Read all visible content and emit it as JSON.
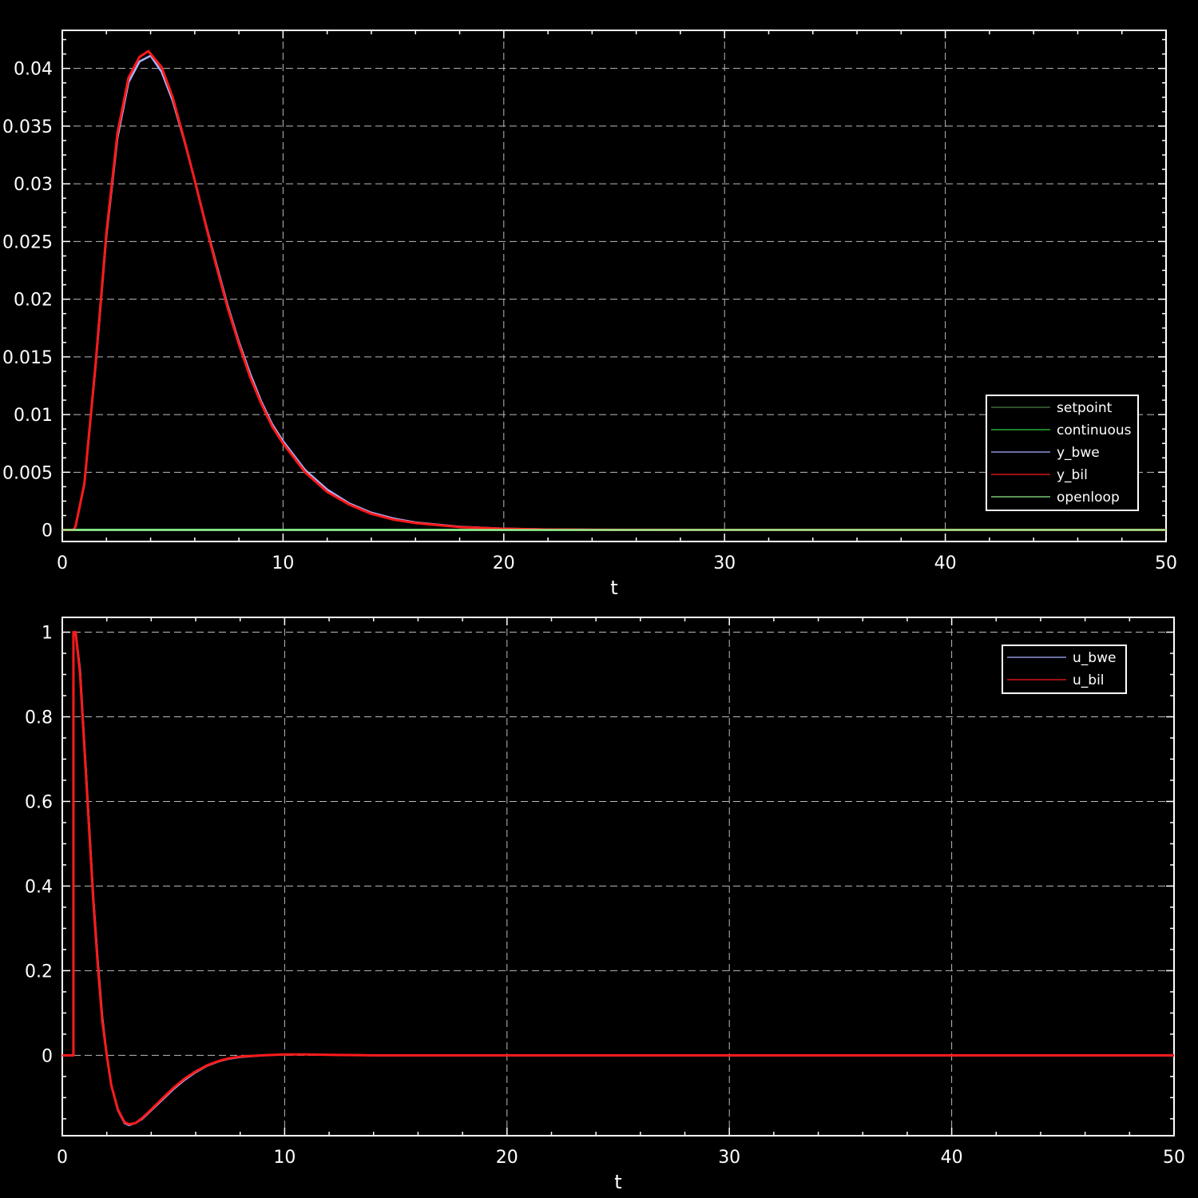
{
  "chart_data": [
    {
      "type": "line",
      "xlabel": "t",
      "xlim": [
        0,
        50
      ],
      "ylim": [
        -0.001,
        0.0433
      ],
      "x_ticks": [
        0,
        10,
        20,
        30,
        40,
        50
      ],
      "y_ticks": [
        0,
        0.005,
        0.01,
        0.015,
        0.02,
        0.025,
        0.03,
        0.035,
        0.04
      ],
      "x_tick_labels": [
        "0",
        "10",
        "20",
        "30",
        "40",
        "50"
      ],
      "y_tick_labels": [
        "0",
        "0.005",
        "0.01",
        "0.015",
        "0.02",
        "0.025",
        "0.03",
        "0.035",
        "0.04"
      ],
      "grid": true,
      "legend_position": "bottom-right",
      "series": [
        {
          "name": "setpoint",
          "color": "#4a7f4a",
          "x": [
            0,
            50
          ],
          "y": [
            0,
            0
          ]
        },
        {
          "name": "continuous",
          "color": "#2ecc40",
          "x": [
            0,
            50
          ],
          "y": [
            0,
            0
          ]
        },
        {
          "name": "y_bwe",
          "color": "#a9b4ff",
          "x": [
            0,
            0.5,
            0.6,
            1,
            1.5,
            2,
            2.5,
            3,
            3.5,
            4,
            4.5,
            5,
            5.5,
            6,
            6.5,
            7,
            7.5,
            8,
            8.5,
            9,
            9.5,
            10,
            11,
            12,
            13,
            14,
            15,
            16,
            18,
            20,
            22,
            25,
            30,
            40,
            50
          ],
          "y": [
            0,
            0,
            0.0003,
            0.004,
            0.014,
            0.0255,
            0.034,
            0.0388,
            0.0406,
            0.0411,
            0.0397,
            0.0372,
            0.0339,
            0.0303,
            0.0265,
            0.0229,
            0.0194,
            0.0163,
            0.0136,
            0.0112,
            0.0092,
            0.0077,
            0.0052,
            0.0035,
            0.0023,
            0.0015,
            0.001,
            0.00065,
            0.00028,
            0.00012,
            5e-05,
            1e-05,
            0,
            0,
            0
          ]
        },
        {
          "name": "y_bil",
          "color": "#ff1a1a",
          "x": [
            0,
            0.5,
            0.6,
            1,
            1.5,
            2,
            2.5,
            3,
            3.5,
            3.9,
            4.5,
            5,
            5.5,
            6,
            6.5,
            7,
            7.5,
            8,
            8.5,
            9,
            9.5,
            10,
            11,
            12,
            13,
            14,
            15,
            16,
            18,
            20,
            22,
            25,
            30,
            40,
            50
          ],
          "y": [
            0,
            0,
            0.0003,
            0.004,
            0.0142,
            0.0258,
            0.0344,
            0.0392,
            0.041,
            0.0415,
            0.0401,
            0.0375,
            0.034,
            0.0303,
            0.0264,
            0.0227,
            0.0192,
            0.0161,
            0.0133,
            0.011,
            0.009,
            0.0075,
            0.005,
            0.0033,
            0.0022,
            0.0014,
            0.0009,
            0.0006,
            0.00025,
            0.0001,
            4e-05,
            1e-05,
            0,
            0,
            0
          ]
        },
        {
          "name": "openloop",
          "color": "#90ee90",
          "x": [
            0,
            50
          ],
          "y": [
            0,
            0
          ]
        }
      ]
    },
    {
      "type": "line",
      "xlabel": "t",
      "xlim": [
        0,
        50
      ],
      "ylim": [
        -0.19,
        1.035
      ],
      "x_ticks": [
        0,
        10,
        20,
        30,
        40,
        50
      ],
      "y_ticks": [
        0,
        0.2,
        0.4,
        0.6,
        0.8,
        1
      ],
      "x_tick_labels": [
        "0",
        "10",
        "20",
        "30",
        "40",
        "50"
      ],
      "y_tick_labels": [
        "0",
        "0.2",
        "0.4",
        "0.6",
        "0.8",
        "1"
      ],
      "grid": true,
      "legend_position": "top-right",
      "series": [
        {
          "name": "u_bwe",
          "color": "#a9b4ff",
          "x": [
            0,
            0.5,
            0.5,
            0.6,
            0.8,
            1,
            1.2,
            1.4,
            1.6,
            1.8,
            2,
            2.2,
            2.5,
            2.8,
            3,
            3.3,
            3.6,
            4,
            4.5,
            5,
            5.5,
            6,
            6.5,
            7,
            7.5,
            8,
            9,
            10,
            11,
            12,
            14,
            20,
            30,
            40,
            50
          ],
          "y": [
            0,
            0,
            1,
            1,
            0.91,
            0.73,
            0.55,
            0.37,
            0.22,
            0.09,
            0,
            -0.07,
            -0.13,
            -0.16,
            -0.165,
            -0.16,
            -0.15,
            -0.13,
            -0.105,
            -0.08,
            -0.058,
            -0.04,
            -0.025,
            -0.015,
            -0.008,
            -0.004,
            0,
            0.002,
            0.002,
            0.001,
            0,
            0,
            0,
            0,
            0
          ]
        },
        {
          "name": "u_bil",
          "color": "#ff1a1a",
          "x": [
            0,
            0.5,
            0.5,
            0.6,
            0.8,
            1,
            1.2,
            1.4,
            1.6,
            1.8,
            2,
            2.2,
            2.5,
            2.8,
            3,
            3.3,
            3.6,
            4,
            4.5,
            5,
            5.5,
            6,
            6.5,
            7,
            7.5,
            8,
            9,
            10,
            11,
            12,
            14,
            20,
            30,
            40,
            50
          ],
          "y": [
            0,
            0,
            1,
            1,
            0.9,
            0.72,
            0.54,
            0.36,
            0.21,
            0.08,
            0,
            -0.07,
            -0.128,
            -0.158,
            -0.163,
            -0.16,
            -0.148,
            -0.128,
            -0.102,
            -0.077,
            -0.055,
            -0.038,
            -0.024,
            -0.014,
            -0.007,
            -0.003,
            0,
            0.002,
            0.002,
            0.001,
            0,
            0,
            0,
            0,
            0
          ]
        }
      ]
    }
  ]
}
